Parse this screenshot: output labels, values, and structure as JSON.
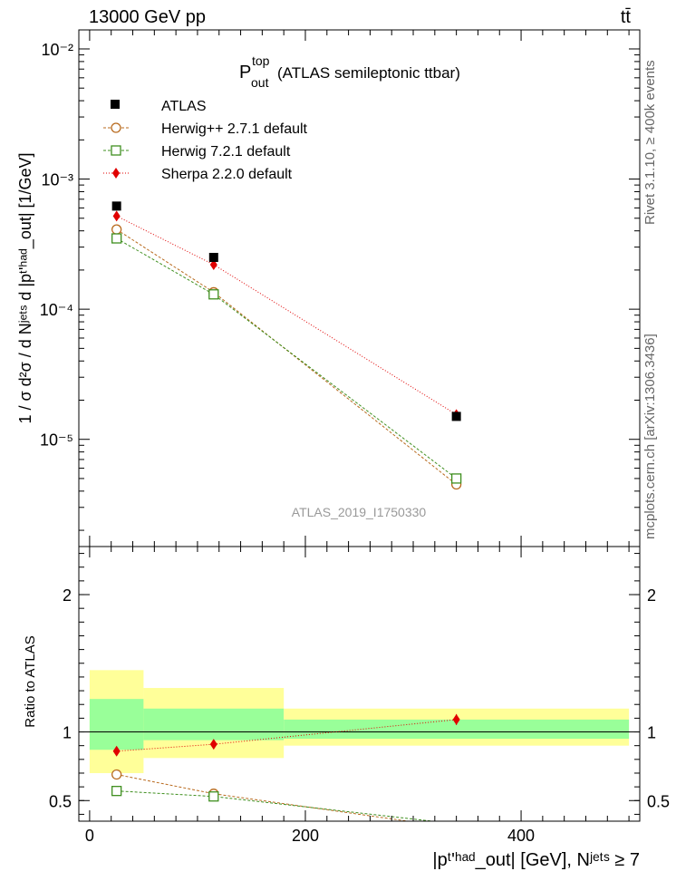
{
  "header": {
    "left": "13000 GeV pp",
    "right": "tt̄"
  },
  "side_labels": {
    "upper": "Rivet 3.1.10, ≥ 400k events",
    "lower": "mcplots.cern.ch [arXiv:1306.3436]"
  },
  "watermark": "ATLAS_2019_I1750330",
  "colors": {
    "atlas": "#000000",
    "herwigpp": "#b86a1e",
    "herwig7": "#3f8f1f",
    "sherpa": "#e00000",
    "band_inner": "#99ff99",
    "band_outer": "#ffff99"
  },
  "chart_data": [
    {
      "type": "scatter",
      "title_main": "P",
      "title_sup": "top",
      "title_sub": "out",
      "title_rest": "(ATLAS semileptonic ttbar)",
      "ylabel": "1 / σ d²σ / d Nʲᵉᵗˢ d |pᵗ'ʰᵃᵈ_out| [1/GeV]",
      "yscale": "log",
      "ylim": [
        1.5e-06,
        0.014
      ],
      "xlim": [
        -10,
        510
      ],
      "ytick_labels": [
        "10⁻²",
        "10⁻³",
        "10⁻⁴",
        "10⁻⁵"
      ],
      "ytick_values": [
        0.01,
        0.001,
        0.0001,
        1e-05
      ],
      "legend_position": "top-left",
      "series": [
        {
          "name": "ATLAS",
          "x": [
            25,
            115,
            340
          ],
          "y": [
            0.00062,
            0.00025,
            1.5e-05
          ]
        },
        {
          "name": "Herwig++ 2.7.1 default",
          "x": [
            25,
            115,
            340
          ],
          "y": [
            0.00041,
            0.000135,
            4.5e-06
          ]
        },
        {
          "name": "Herwig 7.2.1 default",
          "x": [
            25,
            115,
            340
          ],
          "y": [
            0.00035,
            0.00013,
            5e-06
          ]
        },
        {
          "name": "Sherpa 2.2.0 default",
          "x": [
            25,
            115,
            340
          ],
          "y": [
            0.00052,
            0.00022,
            1.55e-05
          ]
        }
      ]
    },
    {
      "type": "scatter",
      "ylabel": "Ratio to ATLAS",
      "xlabel": "|pᵗ'ʰᵃᵈ_out| [GeV], Nʲᵉᵗˢ ≥ 7",
      "xlim": [
        -10,
        510
      ],
      "ylim": [
        0.35,
        2.35
      ],
      "xtick_values": [
        0,
        200,
        400
      ],
      "xtick_labels": [
        "0",
        "200",
        "400"
      ],
      "ytick_values": [
        0.5,
        1,
        2
      ],
      "ytick_labels": [
        "0.5",
        "1",
        "2"
      ],
      "bin_edges": [
        0,
        50,
        180,
        500
      ],
      "band_inner": [
        [
          0.87,
          1.24
        ],
        [
          0.94,
          1.17
        ],
        [
          0.95,
          1.09
        ]
      ],
      "band_outer": [
        [
          0.7,
          1.45
        ],
        [
          0.81,
          1.32
        ],
        [
          0.9,
          1.17
        ]
      ],
      "series": [
        {
          "name": "Herwig++ 2.7.1 default",
          "x": [
            25,
            115,
            340
          ],
          "y": [
            0.69,
            0.55,
            0.3
          ]
        },
        {
          "name": "Herwig 7.2.1 default",
          "x": [
            25,
            115,
            340
          ],
          "y": [
            0.57,
            0.53,
            0.33
          ]
        },
        {
          "name": "Sherpa 2.2.0 default",
          "x": [
            25,
            115,
            340
          ],
          "y": [
            0.86,
            0.91,
            1.09
          ]
        }
      ]
    }
  ]
}
